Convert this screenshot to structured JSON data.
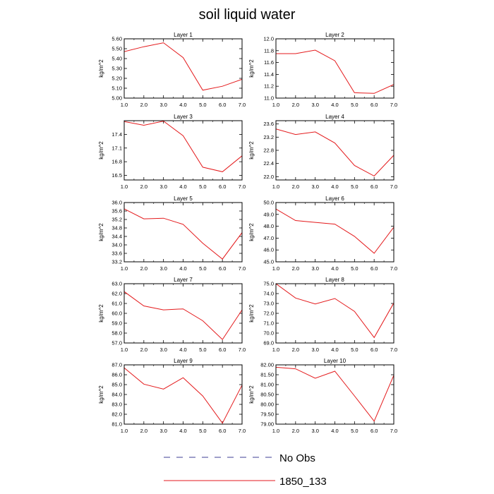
{
  "title": "soil liquid water",
  "legend": {
    "entries": [
      {
        "label": "No Obs",
        "color": "#3c3c96",
        "dash": true
      },
      {
        "label": "1850_133",
        "color": "#e41a1c",
        "dash": false
      }
    ]
  },
  "chart_data": [
    {
      "type": "line",
      "title": "Layer 1",
      "ylabel": "kg/m^2",
      "xlim": [
        1,
        7
      ],
      "ylim": [
        5.0,
        5.6
      ],
      "xticks": [
        "1.0",
        "2.0",
        "3.0",
        "4.0",
        "5.0",
        "6.0",
        "7.0"
      ],
      "yticks": [
        5.0,
        5.1,
        5.2,
        5.3,
        5.4,
        5.5,
        5.6
      ],
      "ytick_labels": [
        "5.00",
        "5.10",
        "5.20",
        "5.30",
        "5.40",
        "5.50",
        "5.60"
      ],
      "series": [
        {
          "name": "1850_133",
          "x": [
            1,
            2,
            3,
            4,
            5,
            6,
            7
          ],
          "values": [
            5.47,
            5.52,
            5.56,
            5.41,
            5.08,
            5.12,
            5.19
          ]
        }
      ]
    },
    {
      "type": "line",
      "title": "Layer 2",
      "ylabel": "kg/m^2",
      "xlim": [
        1,
        7
      ],
      "ylim": [
        11.0,
        12.0
      ],
      "xticks": [
        "1.0",
        "2.0",
        "3.0",
        "4.0",
        "5.0",
        "6.0",
        "7.0"
      ],
      "yticks": [
        11.0,
        11.2,
        11.4,
        11.6,
        11.8,
        12.0
      ],
      "ytick_labels": [
        "11.0",
        "11.2",
        "11.4",
        "11.6",
        "11.8",
        "12.0"
      ],
      "series": [
        {
          "name": "1850_133",
          "x": [
            1,
            2,
            3,
            4,
            5,
            6,
            7
          ],
          "values": [
            11.75,
            11.75,
            11.81,
            11.63,
            11.09,
            11.08,
            11.23
          ]
        }
      ]
    },
    {
      "type": "line",
      "title": "Layer 3",
      "ylabel": "kg/m^2",
      "xlim": [
        1,
        7
      ],
      "ylim": [
        16.4,
        17.7
      ],
      "xticks": [
        "1.0",
        "2.0",
        "3.0",
        "4.0",
        "5.0",
        "6.0",
        "7.0"
      ],
      "yticks": [
        16.5,
        16.8,
        17.1,
        17.4
      ],
      "ytick_labels": [
        "16.5",
        "16.8",
        "17.1",
        "17.4"
      ],
      "series": [
        {
          "name": "1850_133",
          "x": [
            1,
            2,
            3,
            4,
            5,
            6,
            7
          ],
          "values": [
            17.68,
            17.6,
            17.69,
            17.37,
            16.68,
            16.58,
            16.93
          ]
        }
      ]
    },
    {
      "type": "line",
      "title": "Layer 4",
      "ylabel": "kg/m^2",
      "xlim": [
        1,
        7
      ],
      "ylim": [
        21.9,
        23.7
      ],
      "xticks": [
        "1.0",
        "2.0",
        "3.0",
        "4.0",
        "5.0",
        "6.0",
        "7.0"
      ],
      "yticks": [
        22.0,
        22.4,
        22.8,
        23.2,
        23.6
      ],
      "ytick_labels": [
        "22.0",
        "22.4",
        "22.8",
        "23.2",
        "23.6"
      ],
      "series": [
        {
          "name": "1850_133",
          "x": [
            1,
            2,
            3,
            4,
            5,
            6,
            7
          ],
          "values": [
            23.45,
            23.28,
            23.36,
            23.02,
            22.34,
            22.02,
            22.65
          ]
        }
      ]
    },
    {
      "type": "line",
      "title": "Layer 5",
      "ylabel": "kg/m^2",
      "xlim": [
        1,
        7
      ],
      "ylim": [
        33.2,
        36.0
      ],
      "xticks": [
        "1.0",
        "2.0",
        "3.0",
        "4.0",
        "5.0",
        "6.0",
        "7.0"
      ],
      "yticks": [
        33.2,
        33.6,
        34.0,
        34.4,
        34.8,
        35.2,
        35.6,
        36.0
      ],
      "ytick_labels": [
        "33.2",
        "33.6",
        "34.0",
        "34.4",
        "34.8",
        "35.2",
        "35.6",
        "36.0"
      ],
      "series": [
        {
          "name": "1850_133",
          "x": [
            1,
            2,
            3,
            4,
            5,
            6,
            7
          ],
          "values": [
            35.7,
            35.23,
            35.26,
            34.97,
            34.08,
            33.33,
            34.58
          ]
        }
      ]
    },
    {
      "type": "line",
      "title": "Layer 6",
      "ylabel": "kg/m^2",
      "xlim": [
        1,
        7
      ],
      "ylim": [
        45.0,
        50.0
      ],
      "xticks": [
        "1.0",
        "2.0",
        "3.0",
        "4.0",
        "5.0",
        "6.0",
        "7.0"
      ],
      "yticks": [
        45.0,
        46.0,
        47.0,
        48.0,
        49.0,
        50.0
      ],
      "ytick_labels": [
        "45.0",
        "46.0",
        "47.0",
        "48.0",
        "49.0",
        "50.0"
      ],
      "series": [
        {
          "name": "1850_133",
          "x": [
            1,
            2,
            3,
            4,
            5,
            6,
            7
          ],
          "values": [
            49.45,
            48.48,
            48.33,
            48.18,
            47.15,
            45.72,
            47.92
          ]
        }
      ]
    },
    {
      "type": "line",
      "title": "Layer 7",
      "ylabel": "kg/m^2",
      "xlim": [
        1,
        7
      ],
      "ylim": [
        57.0,
        63.0
      ],
      "xticks": [
        "1.0",
        "2.0",
        "3.0",
        "4.0",
        "5.0",
        "6.0",
        "7.0"
      ],
      "yticks": [
        57.0,
        58.0,
        59.0,
        60.0,
        61.0,
        62.0,
        63.0
      ],
      "ytick_labels": [
        "57.0",
        "58.0",
        "59.0",
        "60.0",
        "61.0",
        "62.0",
        "63.0"
      ],
      "series": [
        {
          "name": "1850_133",
          "x": [
            1,
            2,
            3,
            4,
            5,
            6,
            7
          ],
          "values": [
            62.2,
            60.75,
            60.35,
            60.45,
            59.25,
            57.35,
            60.35
          ]
        }
      ]
    },
    {
      "type": "line",
      "title": "Layer 8",
      "ylabel": "kg/m^2",
      "xlim": [
        1,
        7
      ],
      "ylim": [
        69.0,
        75.0
      ],
      "xticks": [
        "1.0",
        "2.0",
        "3.0",
        "4.0",
        "5.0",
        "6.0",
        "7.0"
      ],
      "yticks": [
        69.0,
        70.0,
        71.0,
        72.0,
        73.0,
        74.0,
        75.0
      ],
      "ytick_labels": [
        "69.0",
        "70.0",
        "71.0",
        "72.0",
        "73.0",
        "74.0",
        "75.0"
      ],
      "series": [
        {
          "name": "1850_133",
          "x": [
            1,
            2,
            3,
            4,
            5,
            6,
            7
          ],
          "values": [
            75.0,
            73.55,
            72.95,
            73.5,
            72.2,
            69.55,
            73.05
          ]
        }
      ]
    },
    {
      "type": "line",
      "title": "Layer 9",
      "ylabel": "kg/m^2",
      "xlim": [
        1,
        7
      ],
      "ylim": [
        81.0,
        87.0
      ],
      "xticks": [
        "1.0",
        "2.0",
        "3.0",
        "4.0",
        "5.0",
        "6.0",
        "7.0"
      ],
      "yticks": [
        81.0,
        82.0,
        83.0,
        84.0,
        85.0,
        86.0,
        87.0
      ],
      "ytick_labels": [
        "81.0",
        "82.0",
        "83.0",
        "84.0",
        "85.0",
        "86.0",
        "87.0"
      ],
      "series": [
        {
          "name": "1850_133",
          "x": [
            1,
            2,
            3,
            4,
            5,
            6,
            7
          ],
          "values": [
            86.7,
            85.05,
            84.55,
            85.7,
            83.85,
            81.1,
            84.95
          ]
        }
      ]
    },
    {
      "type": "line",
      "title": "Layer 10",
      "ylabel": "kg/m^2",
      "xlim": [
        1,
        7
      ],
      "ylim": [
        79.0,
        82.0
      ],
      "xticks": [
        "1.0",
        "2.0",
        "3.0",
        "4.0",
        "5.0",
        "6.0",
        "7.0"
      ],
      "yticks": [
        79.0,
        79.5,
        80.0,
        80.5,
        81.0,
        81.5,
        82.0
      ],
      "ytick_labels": [
        "79.00",
        "79.50",
        "80.00",
        "80.50",
        "81.00",
        "81.50",
        "82.00"
      ],
      "series": [
        {
          "name": "1850_133",
          "x": [
            1,
            2,
            3,
            4,
            5,
            6,
            7
          ],
          "values": [
            81.88,
            81.8,
            81.32,
            81.68,
            80.43,
            79.15,
            81.47
          ]
        }
      ]
    }
  ]
}
